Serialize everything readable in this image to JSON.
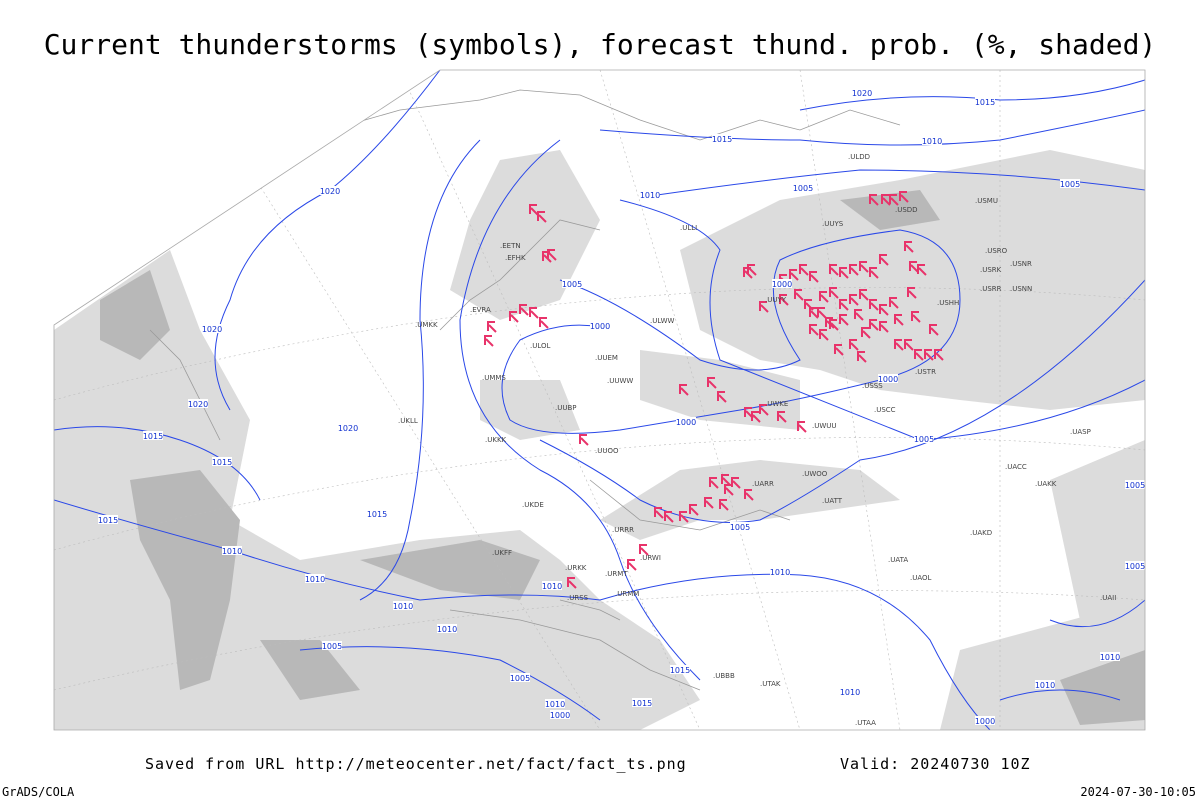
{
  "header": {
    "title": "Current thunderstorms (symbols), forecast thund. prob. (%, shaded)"
  },
  "map": {
    "isobar_labels": [
      "1020",
      "1015",
      "1015",
      "1010",
      "1005",
      "1005",
      "1020",
      "1010",
      "1005",
      "1000",
      "1000",
      "1020",
      "1020",
      "1000",
      "1020",
      "1015",
      "1000",
      "1015",
      "1005",
      "1015",
      "1015",
      "1005",
      "1005",
      "1010",
      "1010",
      "1010",
      "1010",
      "1010",
      "1010",
      "1005",
      "1015",
      "1005",
      "1010",
      "1015",
      "1000",
      "1010",
      "1010",
      "1010",
      "1000",
      "1005"
    ],
    "stations": [
      ".ULLI",
      ".UUYY",
      ".ULWW",
      ".UUEM",
      ".UUWW",
      ".UUBP",
      ".UUOO",
      ".UMMS",
      ".UMKK",
      ".EVRA",
      ".EETN",
      ".EFHK",
      ".ULOL",
      ".UKKK",
      ".UKLL",
      ".UKDE",
      ".UKFF",
      ".URKK",
      ".URRR",
      ".URWI",
      ".URMT",
      ".URMM",
      ".URSS",
      ".UBBB",
      ".UTAK",
      ".UTAA",
      ".UATT",
      ".UARR",
      ".UWOO",
      ".UWUU",
      ".UWKE",
      ".USCC",
      ".USSS",
      ".USTR",
      ".USHH",
      ".USRR",
      ".USNN",
      ".USRK",
      ".USNR",
      ".USRO",
      ".USMU",
      ".USDD",
      ".ULDD",
      ".UUYS",
      ".UACC",
      ".UAKK",
      ".UASP",
      ".UATA",
      ".UAOL",
      ".UAKD",
      ".UAII"
    ]
  },
  "footer": {
    "source": "Saved from URL http://meteocenter.net/fact/fact_ts.png",
    "valid": "Valid: 20240730 10Z",
    "software": "GrADS/COLA",
    "timestamp": "2024-07-30-10:05"
  }
}
